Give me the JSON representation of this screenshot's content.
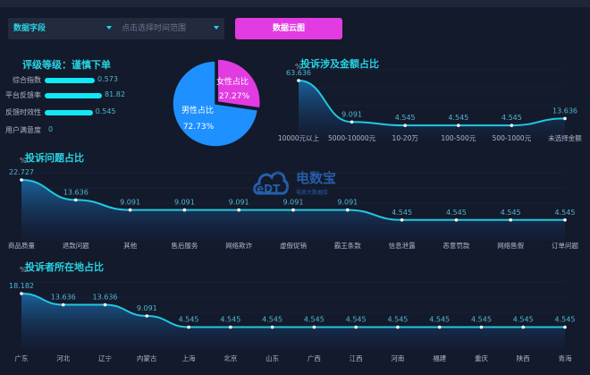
{
  "toolbar": {
    "field_select": "数据字段",
    "time_range_placeholder": "点击选择时间范围",
    "cloud_button": "数据云图"
  },
  "rating": {
    "title": "评级等级：谨慎下单",
    "rows": [
      {
        "label": "综合指数",
        "value": "0.573",
        "bar": 0.7
      },
      {
        "label": "平台反馈率",
        "value": "81.82",
        "bar": 0.8
      },
      {
        "label": "反馈时效性",
        "value": "0.545",
        "bar": 0.67
      },
      {
        "label": "用户满意度",
        "value": "0",
        "bar": 0
      }
    ]
  },
  "watermark": {
    "brand": "电数宝",
    "sub": "电商大数据库",
    "logo_text": "eDT"
  },
  "colors": {
    "accent": "#27d3e3",
    "pink": "#e23be1",
    "blue": "#1f90ff",
    "bg": "#131a2b"
  },
  "chart_data": [
    {
      "type": "pie",
      "title": "",
      "categories": [
        "女性占比",
        "男性占比"
      ],
      "values": [
        27.27,
        72.73
      ],
      "labels": [
        "27.27%",
        "72.73%"
      ],
      "colors": [
        "#e23be1",
        "#1f90ff"
      ]
    },
    {
      "type": "area",
      "title": "投诉涉及金额占比",
      "ylabel": "%",
      "categories": [
        "10000元以上",
        "5000-10000元",
        "10-20万",
        "100-500元",
        "500-1000元",
        "未选择金额"
      ],
      "values": [
        63.636,
        9.091,
        4.545,
        4.545,
        4.545,
        13.636
      ],
      "value_labels": [
        "63.636",
        "9.091",
        "4.545",
        "4.545",
        "4.545",
        "13.636"
      ]
    },
    {
      "type": "area",
      "title": "投诉问题占比",
      "ylabel": "%",
      "categories": [
        "商品质量",
        "退款问题",
        "其他",
        "售后服务",
        "网络欺诈",
        "虚假促销",
        "霸王条款",
        "信息泄露",
        "恶意罚款",
        "网络售假",
        "订单问题"
      ],
      "values": [
        22.727,
        13.636,
        9.091,
        9.091,
        9.091,
        9.091,
        9.091,
        4.545,
        4.545,
        4.545,
        4.545
      ],
      "value_labels": [
        "22.727",
        "13.636",
        "9.091",
        "9.091",
        "9.091",
        "9.091",
        "9.091",
        "4.545",
        "4.545",
        "4.545",
        "4.545"
      ]
    },
    {
      "type": "area",
      "title": "投诉者所在地占比",
      "ylabel": "%",
      "categories": [
        "广东",
        "河北",
        "辽宁",
        "内蒙古",
        "上海",
        "北京",
        "山东",
        "广西",
        "江西",
        "河南",
        "福建",
        "重庆",
        "陕西",
        "青海"
      ],
      "values": [
        18.182,
        13.636,
        13.636,
        9.091,
        4.545,
        4.545,
        4.545,
        4.545,
        4.545,
        4.545,
        4.545,
        4.545,
        4.545,
        4.545
      ],
      "value_labels": [
        "18.182",
        "13.636",
        "13.636",
        "9.091",
        "4.545",
        "4.545",
        "4.545",
        "4.545",
        "4.545",
        "4.545",
        "4.545",
        "4.545",
        "4.545",
        "4.545"
      ]
    }
  ]
}
